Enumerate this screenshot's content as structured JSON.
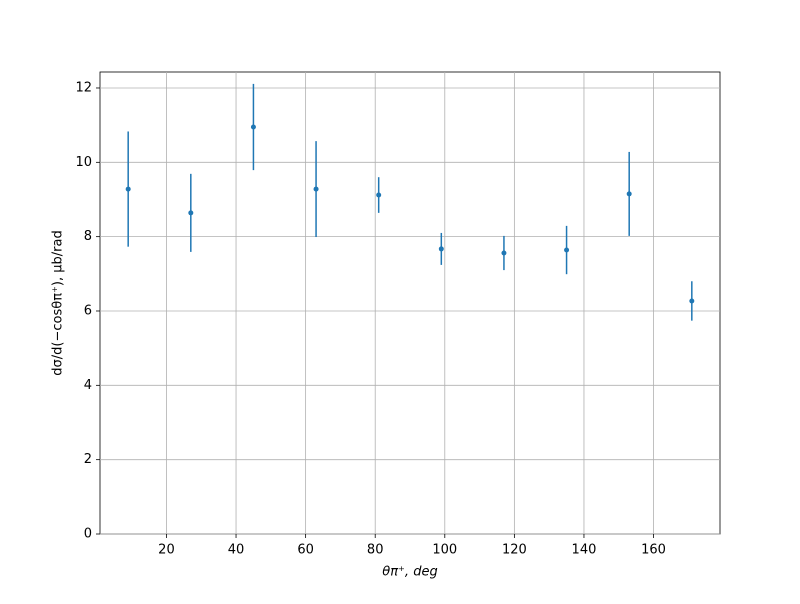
{
  "chart_data": {
    "type": "errorbar",
    "x_label": "θπ⁺, deg",
    "y_label": "dσ/d(−cosθπ⁺), μb/rad",
    "x": [
      9,
      27,
      45,
      63,
      81,
      99,
      117,
      135,
      153,
      171
    ],
    "values": [
      9.28,
      8.64,
      10.95,
      9.28,
      9.12,
      7.67,
      7.56,
      7.64,
      9.15,
      6.27
    ],
    "errors": [
      1.55,
      1.05,
      1.16,
      1.29,
      0.48,
      0.43,
      0.46,
      0.65,
      1.13,
      0.53
    ],
    "color": "#1f77b4",
    "xlim": [
      0.9,
      179.1
    ],
    "xticks": [
      20,
      40,
      60,
      80,
      100,
      120,
      140,
      160
    ],
    "ylim": [
      0,
      12.43
    ],
    "yticks": [
      0,
      2,
      4,
      6,
      8,
      10,
      12
    ],
    "grid": true
  }
}
